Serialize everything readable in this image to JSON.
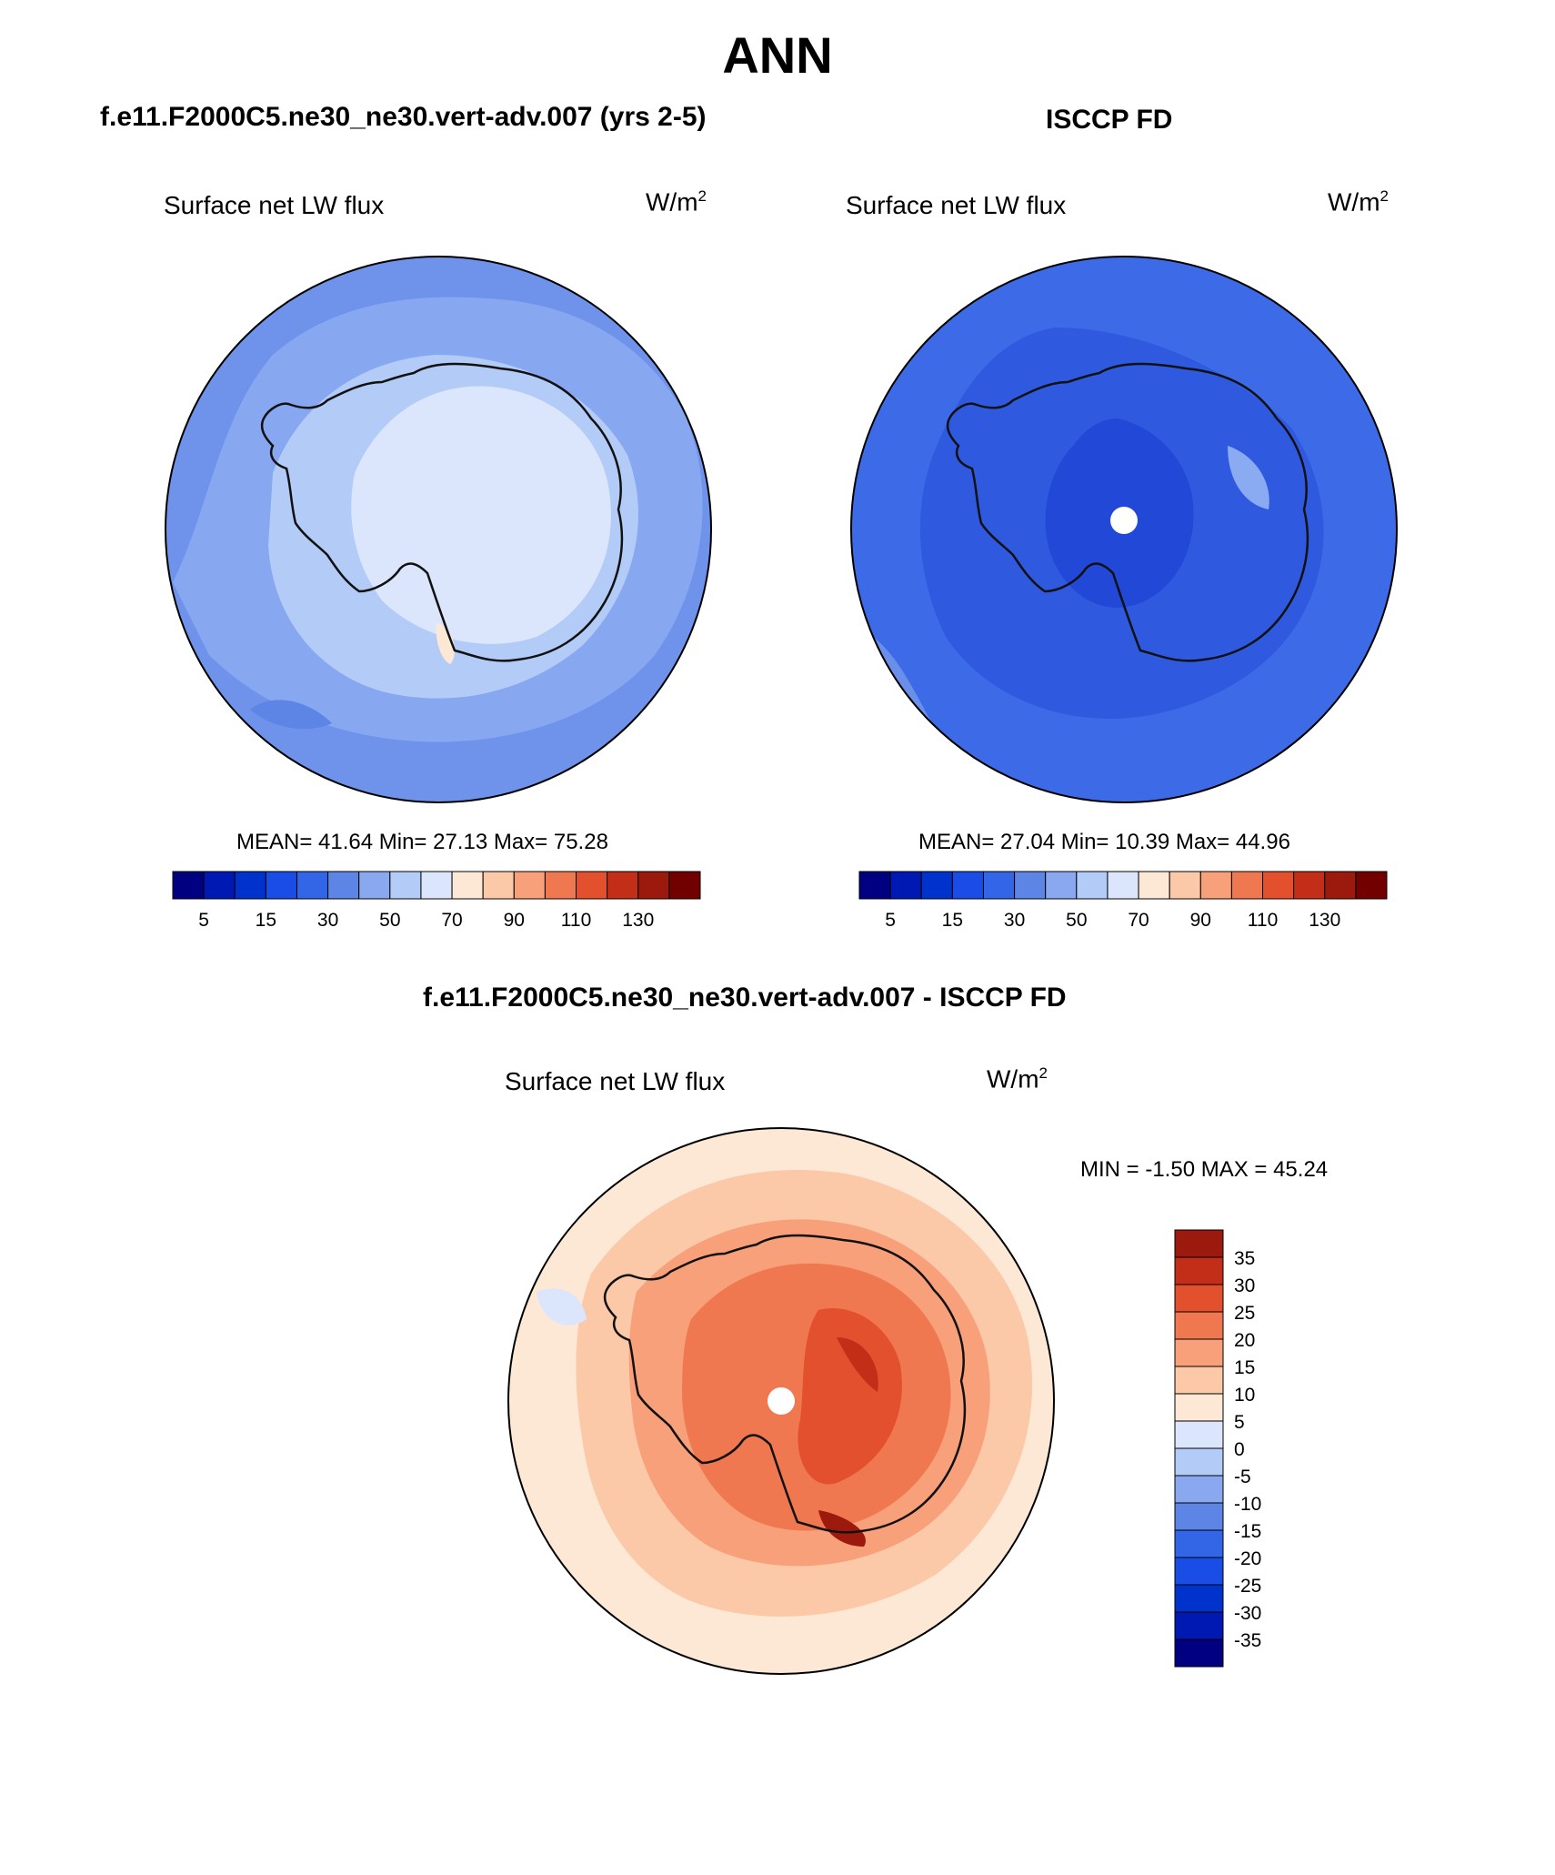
{
  "season": "ANN",
  "colors": {
    "abs_scale": [
      "#000080",
      "#0019b3",
      "#0033cc",
      "#1a4de6",
      "#3366e6",
      "#5c85e6",
      "#8aa8f0",
      "#b3cbf7",
      "#dbe6fc",
      "#fde8d5",
      "#fbc8a8",
      "#f7a07a",
      "#f07850",
      "#e3502d",
      "#c22e17",
      "#9c1a0d",
      "#730000"
    ],
    "diff_scale": [
      "#000080",
      "#0019b3",
      "#0033cc",
      "#1a4de6",
      "#3366e6",
      "#5c85e6",
      "#8aa8f0",
      "#b3cbf7",
      "#dbe6fc",
      "#fde8d5",
      "#fbc8a8",
      "#f7a07a",
      "#f07850",
      "#e3502d",
      "#c22e17",
      "#9c1a0d"
    ]
  },
  "panels": [
    {
      "header": "f.e11.F2000C5.ne30_ne30.vert-adv.007 (yrs 2-5)",
      "variable": "Surface net LW flux",
      "units": "W/m",
      "units_sup": "2",
      "stats": "MEAN=  41.64  Min=  27.13  Max=  75.28",
      "colorbar_labels": [
        "5",
        "15",
        "30",
        "50",
        "70",
        "90",
        "110",
        "130"
      ]
    },
    {
      "header": "ISCCP FD",
      "variable": "Surface net LW flux",
      "units": "W/m",
      "units_sup": "2",
      "stats": "MEAN=  27.04  Min=  10.39  Max=  44.96",
      "colorbar_labels": [
        "5",
        "15",
        "30",
        "50",
        "70",
        "90",
        "110",
        "130"
      ]
    },
    {
      "header": "f.e11.F2000C5.ne30_ne30.vert-adv.007 - ISCCP FD",
      "variable": "Surface net LW flux",
      "units": "W/m",
      "units_sup": "2",
      "stats": "MIN =  -1.50 MAX =  45.24",
      "colorbar_labels": [
        "35",
        "30",
        "25",
        "20",
        "15",
        "10",
        "5",
        "0",
        "-5",
        "-10",
        "-15",
        "-20",
        "-25",
        "-30",
        "-35"
      ]
    }
  ]
}
